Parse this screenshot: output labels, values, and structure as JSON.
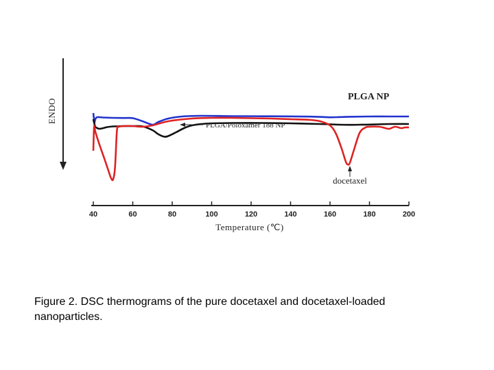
{
  "caption": "Figure 2. DSC thermograms of the pure docetaxel and docetaxel-loaded nanoparticles.",
  "chart_data": {
    "type": "line",
    "xlabel": "Temperature (℃)",
    "ylabel": "ENDO",
    "xlim": [
      40,
      200
    ],
    "xticks": [
      40,
      60,
      80,
      100,
      120,
      140,
      160,
      180,
      200
    ],
    "xtick_labels": [
      "40",
      "60",
      "80",
      "100",
      "120",
      "140",
      "160",
      "180",
      "200"
    ],
    "y_units": "relative heat flow (endotherm downward)",
    "series": [
      {
        "name": "PLGA NP",
        "color": "#2233cc",
        "x": [
          40,
          40.6,
          41,
          42,
          45,
          50,
          55,
          60,
          65,
          70,
          73,
          78,
          85,
          95,
          110,
          130,
          150,
          160,
          165,
          170,
          180,
          190,
          200
        ],
        "y": [
          35,
          22,
          26,
          29,
          28.5,
          28,
          27.8,
          27.5,
          23,
          18,
          22,
          27,
          30,
          31,
          30.5,
          30.3,
          29.8,
          28.8,
          29.2,
          29.6,
          30,
          30,
          30
        ]
      },
      {
        "name": "PLGA/Poloxamer 188 NP",
        "color": "#111111",
        "x": [
          40,
          40.5,
          41,
          42,
          43,
          45,
          47,
          50,
          55,
          60,
          65,
          70,
          73,
          76,
          78,
          82,
          86,
          90,
          95,
          100,
          110,
          125,
          140,
          155,
          165,
          170,
          175,
          180,
          190,
          200
        ],
        "y": [
          26,
          20,
          15,
          13,
          12,
          13,
          14.5,
          15.5,
          16,
          16,
          15.5,
          10,
          4,
          0.5,
          1.5,
          7,
          13,
          17,
          19,
          20,
          20.5,
          20.5,
          20,
          19,
          18,
          17.8,
          18,
          18.2,
          19,
          19
        ]
      },
      {
        "name": "docetaxel",
        "color": "#dd2222",
        "x": [
          40,
          40.4,
          41,
          43,
          46,
          48,
          49,
          50,
          51,
          52,
          53,
          56,
          60,
          65,
          70,
          75,
          80,
          90,
          100,
          110,
          120,
          130,
          140,
          150,
          155,
          160,
          163,
          166,
          168,
          169,
          170,
          172,
          175,
          178,
          180,
          185,
          188,
          190,
          193,
          196,
          198,
          200
        ],
        "y": [
          -20,
          15,
          8,
          -10,
          -35,
          -52,
          -60,
          -62,
          -45,
          10,
          15,
          16,
          16,
          15,
          17,
          21,
          24,
          27,
          28,
          28,
          27.5,
          27,
          26,
          25,
          23,
          17,
          5,
          -18,
          -36,
          -40,
          -38,
          -20,
          6,
          14,
          15,
          15,
          13,
          12,
          15,
          13,
          14,
          14
        ]
      }
    ],
    "annotations": [
      {
        "text": "PLGA NP",
        "series": "PLGA NP"
      },
      {
        "text": "PLGA/Poloxamer 188 NP",
        "series": "PLGA/Poloxamer 188 NP",
        "arrow": true
      },
      {
        "text": "docetaxel",
        "series": "docetaxel",
        "arrow": true
      }
    ],
    "grid": false,
    "legend": "none (direct labels)"
  }
}
